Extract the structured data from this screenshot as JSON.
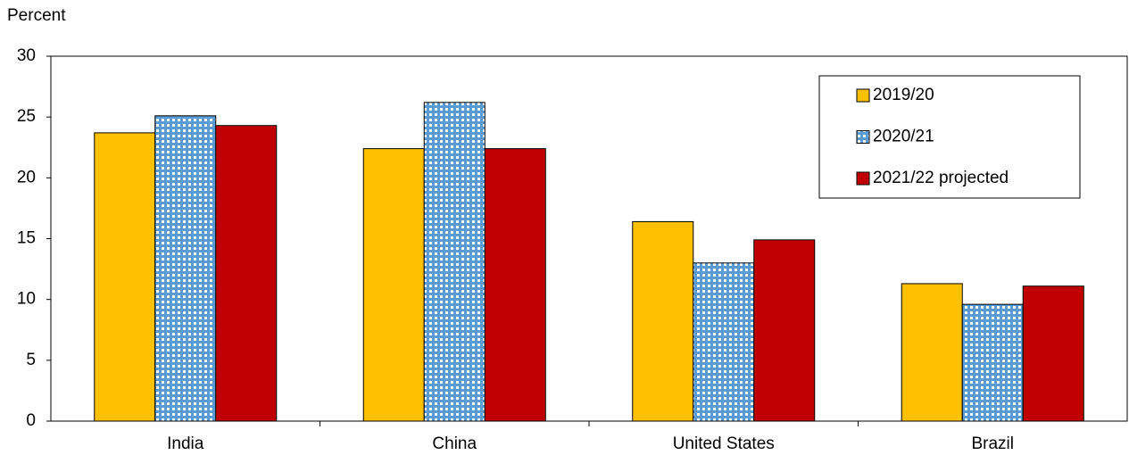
{
  "chart_data": {
    "type": "bar",
    "y_label": "Percent",
    "categories": [
      "India",
      "China",
      "United States",
      "Brazil"
    ],
    "series": [
      {
        "name": "2019/20",
        "color": "#ffc000",
        "values": [
          23.7,
          22.4,
          16.4,
          11.3
        ]
      },
      {
        "name": "2020/21",
        "color": "#5b9bd5",
        "pattern": "dots",
        "values": [
          25.1,
          26.2,
          13.0,
          9.6
        ]
      },
      {
        "name": "2021/22 projected",
        "color": "#c00000",
        "values": [
          24.3,
          22.4,
          14.9,
          11.1
        ]
      }
    ],
    "ylim": [
      0,
      30
    ],
    "yticks": [
      0,
      5,
      10,
      15,
      20,
      25,
      30
    ],
    "legend": "upper right"
  }
}
